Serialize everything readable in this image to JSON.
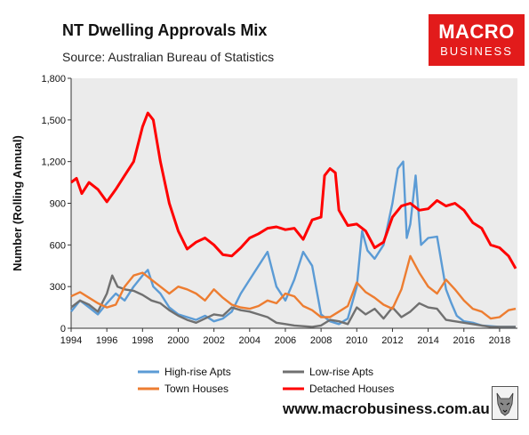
{
  "logo": {
    "line1": "MACRO",
    "line2": "BUSINESS"
  },
  "website": "www.macrobusiness.com.au",
  "chart_data": {
    "type": "line",
    "title": "NT Dwelling Approvals Mix",
    "subtitle": "Source: Australian Bureau of Statistics",
    "ylabel": "Number (Rolling Annual)",
    "xlabel": "",
    "ylim": [
      0,
      1800
    ],
    "xlim": [
      1994,
      2019
    ],
    "yticks": [
      0,
      300,
      600,
      900,
      1200,
      1500,
      1800
    ],
    "ytick_labels": [
      "0",
      "300",
      "600",
      "900",
      "1,200",
      "1,500",
      "1,800"
    ],
    "xticks": [
      1994,
      1996,
      1998,
      2000,
      2002,
      2004,
      2006,
      2008,
      2010,
      2012,
      2014,
      2016,
      2018
    ],
    "xtick_labels": [
      "1994",
      "1996",
      "1998",
      "2000",
      "2002",
      "2004",
      "2006",
      "2008",
      "2010",
      "2012",
      "2014",
      "2016",
      "2018"
    ],
    "grid": false,
    "plot_background": "#ebebeb",
    "legend_position": "bottom",
    "series": [
      {
        "name": "High-rise Apts",
        "color": "#5b9bd5",
        "x": [
          1994,
          1994.5,
          1995,
          1995.5,
          1996,
          1996.5,
          1997,
          1997.5,
          1998,
          1998.3,
          1998.6,
          1999,
          1999.5,
          2000,
          2000.5,
          2001,
          2001.5,
          2002,
          2002.5,
          2003,
          2003.5,
          2004,
          2004.5,
          2005,
          2005.5,
          2006,
          2006.5,
          2007,
          2007.5,
          2008,
          2008.5,
          2009,
          2009.5,
          2010,
          2010.3,
          2010.6,
          2011,
          2011.5,
          2012,
          2012.3,
          2012.6,
          2012.8,
          2013,
          2013.3,
          2013.6,
          2014,
          2014.5,
          2015,
          2015.3,
          2015.6,
          2016,
          2016.5,
          2017,
          2017.5,
          2018,
          2018.5,
          2018.9
        ],
        "values": [
          120,
          200,
          150,
          100,
          180,
          250,
          200,
          300,
          380,
          420,
          300,
          250,
          150,
          100,
          80,
          60,
          90,
          50,
          70,
          120,
          250,
          350,
          450,
          550,
          300,
          200,
          350,
          550,
          450,
          100,
          50,
          30,
          70,
          300,
          700,
          560,
          500,
          600,
          900,
          1150,
          1200,
          650,
          750,
          1100,
          600,
          650,
          660,
          280,
          180,
          90,
          50,
          40,
          20,
          15,
          10,
          10,
          10
        ]
      },
      {
        "name": "Low-rise Apts",
        "color": "#707070",
        "x": [
          1994,
          1994.5,
          1995,
          1995.5,
          1996,
          1996.3,
          1996.6,
          1997,
          1997.5,
          1998,
          1998.5,
          1999,
          1999.5,
          2000,
          2000.5,
          2001,
          2001.5,
          2002,
          2002.5,
          2003,
          2003.5,
          2004,
          2004.5,
          2005,
          2005.5,
          2006,
          2006.5,
          2007,
          2007.5,
          2008,
          2008.5,
          2009,
          2009.5,
          2010,
          2010.5,
          2011,
          2011.5,
          2012,
          2012.5,
          2013,
          2013.5,
          2014,
          2014.5,
          2015,
          2015.5,
          2016,
          2016.5,
          2017,
          2017.5,
          2018,
          2018.5,
          2018.9
        ],
        "values": [
          150,
          200,
          170,
          120,
          250,
          380,
          300,
          280,
          270,
          240,
          200,
          180,
          130,
          90,
          60,
          40,
          70,
          100,
          90,
          150,
          130,
          120,
          100,
          80,
          40,
          30,
          20,
          15,
          10,
          20,
          60,
          50,
          30,
          150,
          100,
          140,
          70,
          150,
          80,
          120,
          180,
          150,
          140,
          60,
          50,
          40,
          30,
          20,
          10,
          10,
          10,
          10
        ]
      },
      {
        "name": "Town Houses",
        "color": "#ed7d31",
        "x": [
          1994,
          1994.5,
          1995,
          1995.5,
          1996,
          1996.5,
          1997,
          1997.5,
          1998,
          1998.5,
          1999,
          1999.5,
          2000,
          2000.5,
          2001,
          2001.5,
          2002,
          2002.5,
          2003,
          2003.5,
          2004,
          2004.5,
          2005,
          2005.5,
          2006,
          2006.5,
          2007,
          2007.5,
          2008,
          2008.5,
          2009,
          2009.5,
          2010,
          2010.5,
          2011,
          2011.5,
          2012,
          2012.5,
          2013,
          2013.5,
          2014,
          2014.5,
          2015,
          2015.5,
          2016,
          2016.5,
          2017,
          2017.5,
          2018,
          2018.5,
          2018.9
        ],
        "values": [
          230,
          260,
          220,
          180,
          150,
          170,
          300,
          380,
          400,
          350,
          300,
          250,
          300,
          280,
          250,
          200,
          280,
          220,
          170,
          150,
          140,
          160,
          200,
          180,
          250,
          230,
          160,
          130,
          80,
          80,
          120,
          160,
          330,
          260,
          220,
          170,
          140,
          280,
          520,
          400,
          300,
          250,
          350,
          280,
          200,
          140,
          120,
          70,
          80,
          130,
          140
        ]
      },
      {
        "name": "Detached Houses",
        "color": "#ff0000",
        "x": [
          1994,
          1994.3,
          1994.6,
          1995,
          1995.5,
          1996,
          1996.5,
          1997,
          1997.5,
          1998,
          1998.3,
          1998.6,
          1999,
          1999.5,
          2000,
          2000.5,
          2001,
          2001.5,
          2002,
          2002.5,
          2003,
          2003.5,
          2004,
          2004.5,
          2005,
          2005.5,
          2006,
          2006.5,
          2007,
          2007.5,
          2008,
          2008.2,
          2008.5,
          2008.8,
          2009,
          2009.5,
          2010,
          2010.5,
          2011,
          2011.5,
          2012,
          2012.5,
          2013,
          2013.5,
          2014,
          2014.5,
          2015,
          2015.5,
          2016,
          2016.5,
          2017,
          2017.5,
          2018,
          2018.5,
          2018.9
        ],
        "values": [
          1050,
          1080,
          970,
          1050,
          1000,
          910,
          1000,
          1100,
          1200,
          1450,
          1550,
          1500,
          1200,
          900,
          700,
          570,
          620,
          650,
          600,
          530,
          520,
          580,
          650,
          680,
          720,
          730,
          710,
          720,
          640,
          780,
          800,
          1100,
          1150,
          1120,
          850,
          740,
          750,
          700,
          580,
          620,
          800,
          880,
          900,
          850,
          860,
          920,
          880,
          900,
          850,
          760,
          720,
          600,
          580,
          520,
          430
        ]
      }
    ]
  }
}
